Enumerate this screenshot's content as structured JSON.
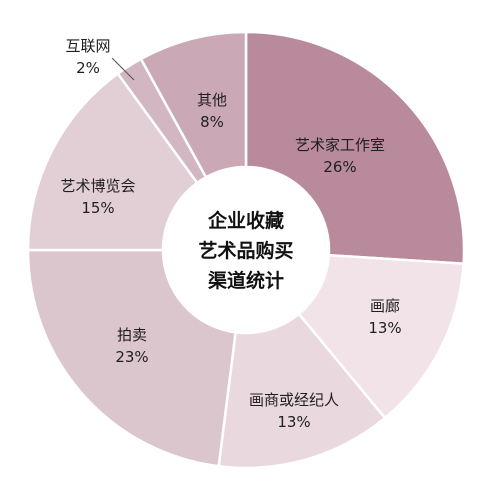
{
  "chart_data": {
    "type": "pie",
    "title_lines": [
      "企业收藏",
      "艺术品购买",
      "渠道统计"
    ],
    "slices": [
      {
        "name": "艺术家工作室",
        "value": 26,
        "label": "26%",
        "color": "#b88a9c"
      },
      {
        "name": "画廊",
        "value": 13,
        "label": "13%",
        "color": "#f1e3e8"
      },
      {
        "name": "画商或经纪人",
        "value": 13,
        "label": "13%",
        "color": "#ead8df"
      },
      {
        "name": "拍卖",
        "value": 23,
        "label": "23%",
        "color": "#dcc6ce"
      },
      {
        "name": "艺术博览会",
        "value": 15,
        "label": "15%",
        "color": "#e2cfd6"
      },
      {
        "name": "互联网",
        "value": 2,
        "label": "2%",
        "color": "#d2b6c1"
      },
      {
        "name": "其他",
        "value": 8,
        "label": "8%",
        "color": "#cba8b6"
      }
    ]
  }
}
